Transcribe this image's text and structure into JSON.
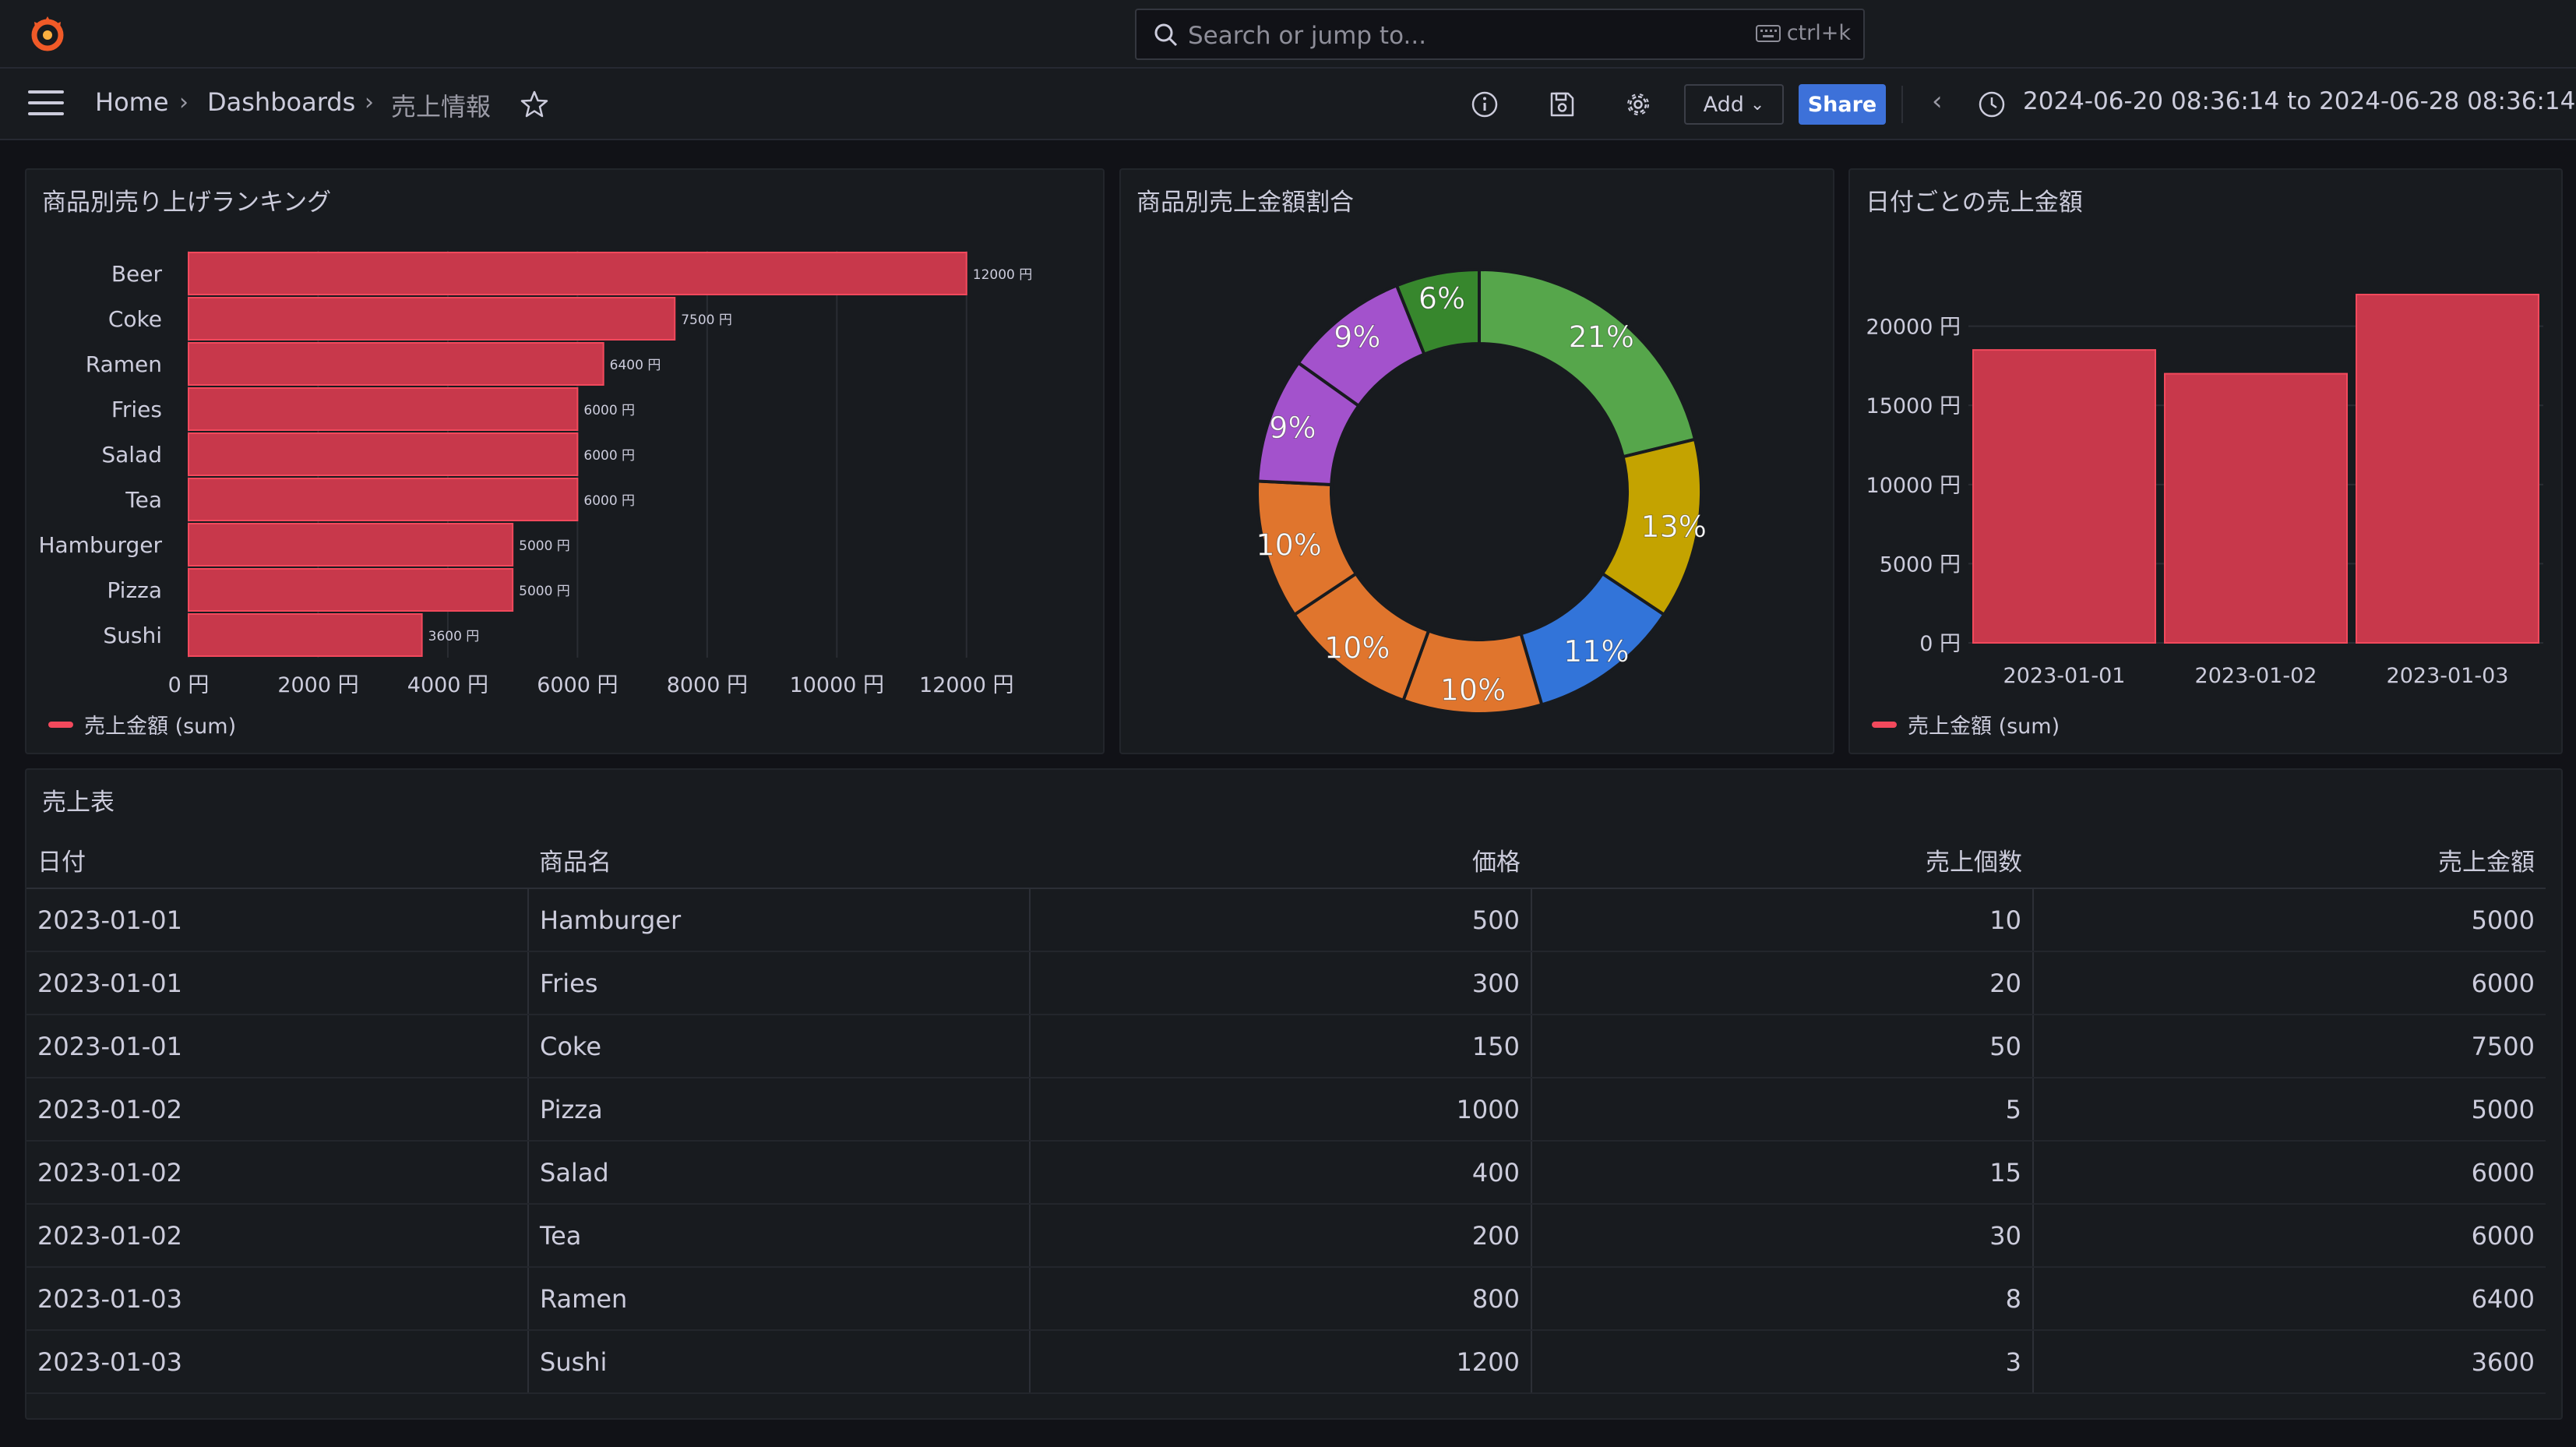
{
  "topbar": {
    "search_placeholder": "Search or jump to...",
    "shortcut": "ctrl+k"
  },
  "nav": {
    "breadcrumb": [
      "Home",
      "Dashboards",
      "売上情報"
    ],
    "add_label": "Add",
    "share_label": "Share",
    "time_range": "2024-06-20 08:36:14 to 2024-06-28 08:36:14"
  },
  "panels": {
    "ranking": {
      "title": "商品別売り上げランキング",
      "legend": "売上金額 (sum)"
    },
    "share": {
      "title": "商品別売上金額割合"
    },
    "daily": {
      "title": "日付ごとの売上金額",
      "legend": "売上金額 (sum)"
    },
    "table": {
      "title": "売上表"
    }
  },
  "chart_data": [
    {
      "type": "bar",
      "orientation": "horizontal",
      "title": "商品別売り上げランキング",
      "categories": [
        "Beer",
        "Coke",
        "Ramen",
        "Fries",
        "Salad",
        "Tea",
        "Hamburger",
        "Pizza",
        "Sushi"
      ],
      "values": [
        12000,
        7500,
        6400,
        6000,
        6000,
        6000,
        5000,
        5000,
        3600
      ],
      "value_labels": [
        "12000 円",
        "7500 円",
        "6400 円",
        "6000 円",
        "6000 円",
        "6000 円",
        "5000 円",
        "5000 円",
        "3600 円"
      ],
      "xticks": [
        "0 円",
        "2000 円",
        "4000 円",
        "6000 円",
        "8000 円",
        "10000 円",
        "12000 円"
      ],
      "xlim": [
        0,
        13000
      ],
      "color": "#f2495c",
      "legend": "売上金額 (sum)",
      "legend_position": "bottom-left"
    },
    {
      "type": "pie",
      "donut": true,
      "title": "商品別売上金額割合",
      "slices": [
        {
          "label": "21%",
          "value": 21,
          "color": "#56a64b"
        },
        {
          "label": "13%",
          "value": 13,
          "color": "#c4a300"
        },
        {
          "label": "11%",
          "value": 11,
          "color": "#3274d9"
        },
        {
          "label": "10%",
          "value": 10,
          "color": "#e0752d"
        },
        {
          "label": "10%",
          "value": 10,
          "color": "#e0752d"
        },
        {
          "label": "10%",
          "value": 10,
          "color": "#e0752d"
        },
        {
          "label": "9%",
          "value": 9,
          "color": "#a352cc"
        },
        {
          "label": "9%",
          "value": 9,
          "color": "#a352cc"
        },
        {
          "label": "6%",
          "value": 6,
          "color": "#37872d"
        }
      ]
    },
    {
      "type": "bar",
      "title": "日付ごとの売上金額",
      "categories": [
        "2023-01-01",
        "2023-01-02",
        "2023-01-03"
      ],
      "values": [
        18500,
        17000,
        22000
      ],
      "yticks": [
        "0 円",
        "5000 円",
        "10000 円",
        "15000 円",
        "20000 円"
      ],
      "ylim": [
        0,
        22000
      ],
      "color": "#f2495c",
      "legend": "売上金額 (sum)",
      "legend_position": "bottom-left"
    }
  ],
  "table": {
    "headers": [
      "日付",
      "商品名",
      "価格",
      "売上個数",
      "売上金額"
    ],
    "rows": [
      [
        "2023-01-01",
        "Hamburger",
        "500",
        "10",
        "5000"
      ],
      [
        "2023-01-01",
        "Fries",
        "300",
        "20",
        "6000"
      ],
      [
        "2023-01-01",
        "Coke",
        "150",
        "50",
        "7500"
      ],
      [
        "2023-01-02",
        "Pizza",
        "1000",
        "5",
        "5000"
      ],
      [
        "2023-01-02",
        "Salad",
        "400",
        "15",
        "6000"
      ],
      [
        "2023-01-02",
        "Tea",
        "200",
        "30",
        "6000"
      ],
      [
        "2023-01-03",
        "Ramen",
        "800",
        "8",
        "6400"
      ],
      [
        "2023-01-03",
        "Sushi",
        "1200",
        "3",
        "3600"
      ]
    ]
  }
}
